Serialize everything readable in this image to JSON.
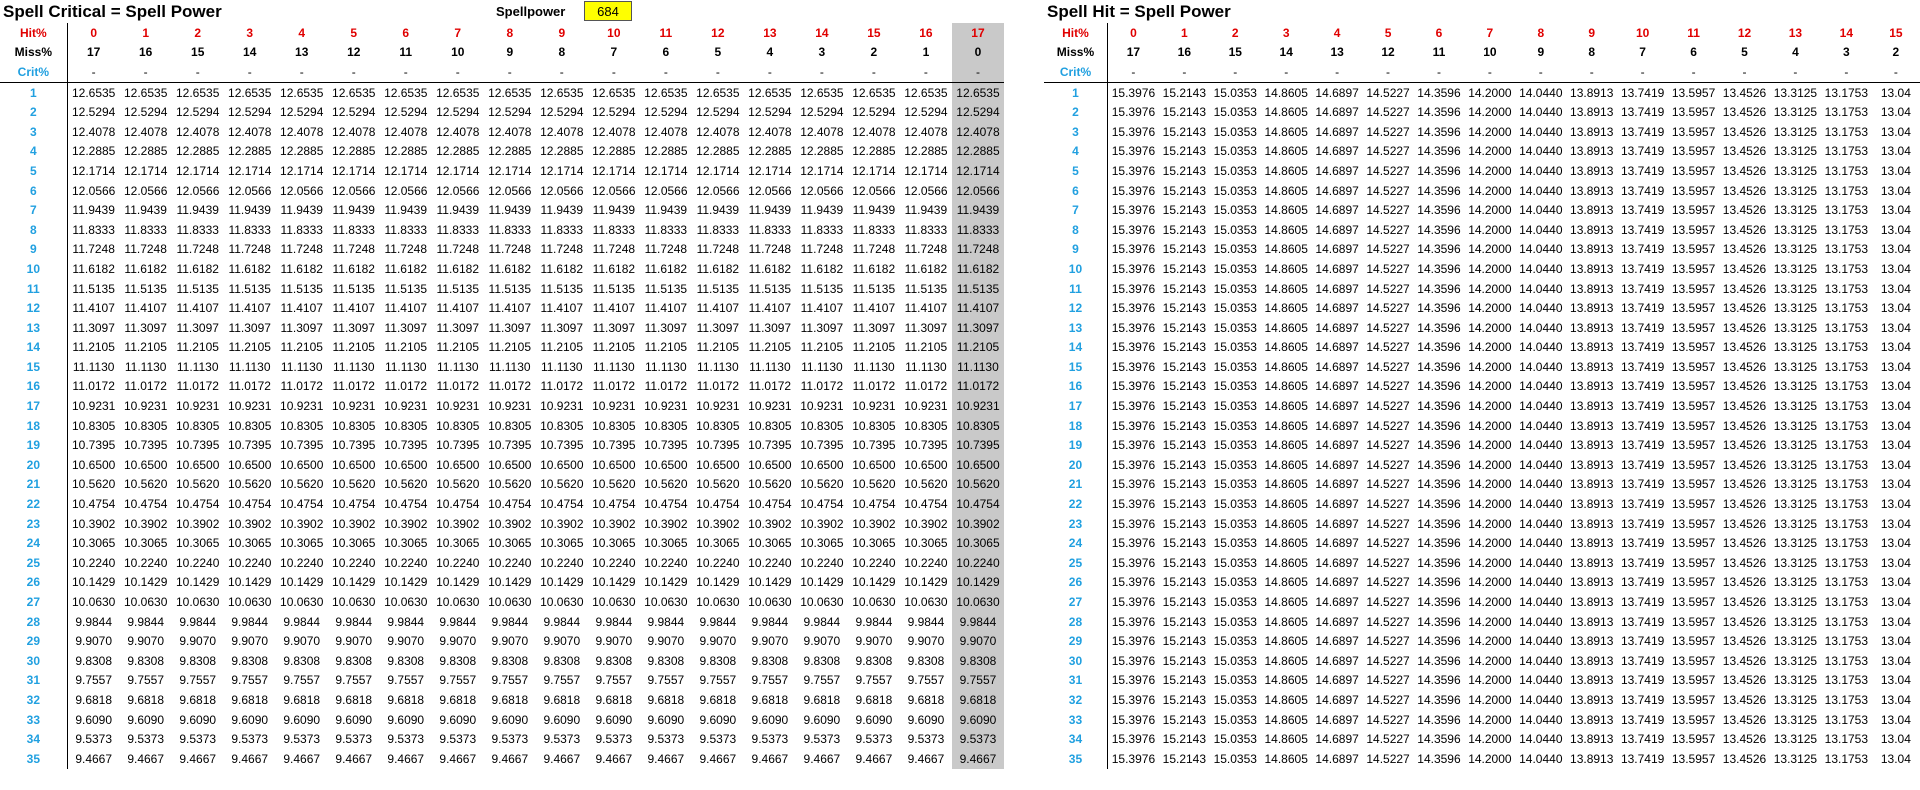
{
  "left": {
    "title": "Spell Critical = Spell Power",
    "spellpower_label": "Spellpower",
    "spellpower_value": "684",
    "hit_label": "Hit%",
    "miss_label": "Miss%",
    "crit_label": "Crit%",
    "hit": [
      "0",
      "1",
      "2",
      "3",
      "4",
      "5",
      "6",
      "7",
      "8",
      "9",
      "10",
      "11",
      "12",
      "13",
      "14",
      "15",
      "16",
      "17"
    ],
    "miss": [
      "17",
      "16",
      "15",
      "14",
      "13",
      "12",
      "11",
      "10",
      "9",
      "8",
      "7",
      "6",
      "5",
      "4",
      "3",
      "2",
      "1",
      "0"
    ],
    "crit_row": [
      "-",
      "-",
      "-",
      "-",
      "-",
      "-",
      "-",
      "-",
      "-",
      "-",
      "-",
      "-",
      "-",
      "-",
      "-",
      "-",
      "-",
      "-"
    ],
    "highlight_col": 17,
    "rows": [
      {
        "crit": "1",
        "value": "12.6535"
      },
      {
        "crit": "2",
        "value": "12.5294"
      },
      {
        "crit": "3",
        "value": "12.4078"
      },
      {
        "crit": "4",
        "value": "12.2885"
      },
      {
        "crit": "5",
        "value": "12.1714"
      },
      {
        "crit": "6",
        "value": "12.0566"
      },
      {
        "crit": "7",
        "value": "11.9439"
      },
      {
        "crit": "8",
        "value": "11.8333"
      },
      {
        "crit": "9",
        "value": "11.7248"
      },
      {
        "crit": "10",
        "value": "11.6182"
      },
      {
        "crit": "11",
        "value": "11.5135"
      },
      {
        "crit": "12",
        "value": "11.4107"
      },
      {
        "crit": "13",
        "value": "11.3097"
      },
      {
        "crit": "14",
        "value": "11.2105"
      },
      {
        "crit": "15",
        "value": "11.1130"
      },
      {
        "crit": "16",
        "value": "11.0172"
      },
      {
        "crit": "17",
        "value": "10.9231"
      },
      {
        "crit": "18",
        "value": "10.8305"
      },
      {
        "crit": "19",
        "value": "10.7395"
      },
      {
        "crit": "20",
        "value": "10.6500"
      },
      {
        "crit": "21",
        "value": "10.5620"
      },
      {
        "crit": "22",
        "value": "10.4754"
      },
      {
        "crit": "23",
        "value": "10.3902"
      },
      {
        "crit": "24",
        "value": "10.3065"
      },
      {
        "crit": "25",
        "value": "10.2240"
      },
      {
        "crit": "26",
        "value": "10.1429"
      },
      {
        "crit": "27",
        "value": "10.0630"
      },
      {
        "crit": "28",
        "value": "9.9844"
      },
      {
        "crit": "29",
        "value": "9.9070"
      },
      {
        "crit": "30",
        "value": "9.8308"
      },
      {
        "crit": "31",
        "value": "9.7557"
      },
      {
        "crit": "32",
        "value": "9.6818"
      },
      {
        "crit": "33",
        "value": "9.6090"
      },
      {
        "crit": "34",
        "value": "9.5373"
      },
      {
        "crit": "35",
        "value": "9.4667"
      }
    ]
  },
  "right": {
    "title": "Spell Hit = Spell Power",
    "hit_label": "Hit%",
    "miss_label": "Miss%",
    "crit_label": "Crit%",
    "hit": [
      "0",
      "1",
      "2",
      "3",
      "4",
      "5",
      "6",
      "7",
      "8",
      "9",
      "10",
      "11",
      "12",
      "13",
      "14",
      "15"
    ],
    "miss": [
      "17",
      "16",
      "15",
      "14",
      "13",
      "12",
      "11",
      "10",
      "9",
      "8",
      "7",
      "6",
      "5",
      "4",
      "3",
      "2"
    ],
    "crit_row": [
      "-",
      "-",
      "-",
      "-",
      "-",
      "-",
      "-",
      "-",
      "-",
      "-",
      "-",
      "-",
      "-",
      "-",
      "-",
      "-"
    ],
    "values": [
      "15.3976",
      "15.2143",
      "15.0353",
      "14.8605",
      "14.6897",
      "14.5227",
      "14.3596",
      "14.2000",
      "14.0440",
      "13.8913",
      "13.7419",
      "13.5957",
      "13.4526",
      "13.3125",
      "13.1753",
      "13.04"
    ],
    "row_labels": [
      "1",
      "2",
      "3",
      "4",
      "5",
      "6",
      "7",
      "8",
      "9",
      "10",
      "11",
      "12",
      "13",
      "14",
      "15",
      "16",
      "17",
      "18",
      "19",
      "20",
      "21",
      "22",
      "23",
      "24",
      "25",
      "26",
      "27",
      "28",
      "29",
      "30",
      "31",
      "32",
      "33",
      "34",
      "35"
    ]
  }
}
